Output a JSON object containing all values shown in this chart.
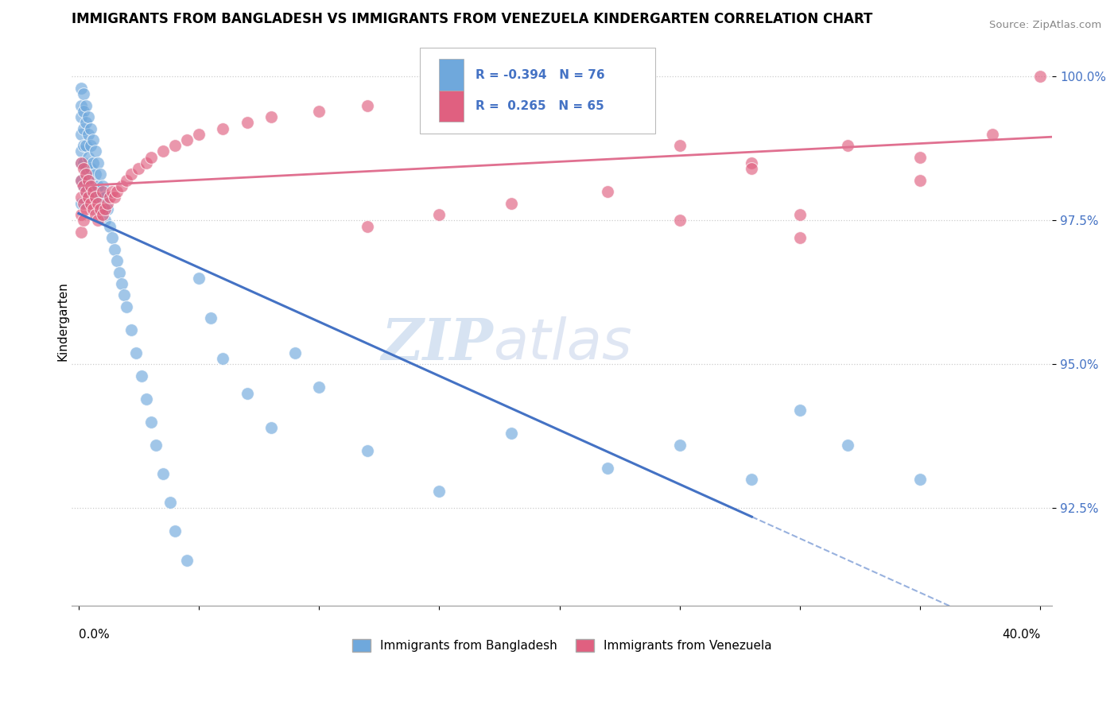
{
  "title": "IMMIGRANTS FROM BANGLADESH VS IMMIGRANTS FROM VENEZUELA KINDERGARTEN CORRELATION CHART",
  "source": "Source: ZipAtlas.com",
  "ylabel": "Kindergarten",
  "yticks": [
    0.925,
    0.95,
    0.975,
    1.0
  ],
  "ytick_labels": [
    "92.5%",
    "95.0%",
    "97.5%",
    "100.0%"
  ],
  "xlim": [
    -0.003,
    0.405
  ],
  "ylim": [
    0.908,
    1.007
  ],
  "legend_R1": "-0.394",
  "legend_N1": "76",
  "legend_R2": "0.265",
  "legend_N2": "65",
  "color_blue": "#6fa8dc",
  "color_pink": "#e06080",
  "line_blue": "#4472c4",
  "line_pink": "#e07090",
  "background": "#ffffff",
  "watermark_ZIP": "ZIP",
  "watermark_atlas": "atlas",
  "bd_x": [
    0.001,
    0.001,
    0.001,
    0.001,
    0.001,
    0.001,
    0.001,
    0.001,
    0.002,
    0.002,
    0.002,
    0.002,
    0.002,
    0.002,
    0.003,
    0.003,
    0.003,
    0.003,
    0.003,
    0.004,
    0.004,
    0.004,
    0.004,
    0.005,
    0.005,
    0.005,
    0.005,
    0.006,
    0.006,
    0.006,
    0.007,
    0.007,
    0.007,
    0.008,
    0.008,
    0.009,
    0.009,
    0.01,
    0.01,
    0.011,
    0.011,
    0.012,
    0.013,
    0.014,
    0.015,
    0.016,
    0.017,
    0.018,
    0.019,
    0.02,
    0.022,
    0.024,
    0.026,
    0.028,
    0.03,
    0.032,
    0.035,
    0.038,
    0.04,
    0.045,
    0.05,
    0.055,
    0.06,
    0.07,
    0.08,
    0.09,
    0.1,
    0.12,
    0.15,
    0.18,
    0.22,
    0.25,
    0.28,
    0.3,
    0.32,
    0.35
  ],
  "bd_y": [
    0.998,
    0.995,
    0.993,
    0.99,
    0.987,
    0.985,
    0.982,
    0.978,
    0.997,
    0.994,
    0.991,
    0.988,
    0.985,
    0.981,
    0.995,
    0.992,
    0.988,
    0.984,
    0.98,
    0.993,
    0.99,
    0.986,
    0.982,
    0.991,
    0.988,
    0.984,
    0.98,
    0.989,
    0.985,
    0.981,
    0.987,
    0.983,
    0.979,
    0.985,
    0.981,
    0.983,
    0.979,
    0.981,
    0.977,
    0.979,
    0.975,
    0.977,
    0.974,
    0.972,
    0.97,
    0.968,
    0.966,
    0.964,
    0.962,
    0.96,
    0.956,
    0.952,
    0.948,
    0.944,
    0.94,
    0.936,
    0.931,
    0.926,
    0.921,
    0.916,
    0.965,
    0.958,
    0.951,
    0.945,
    0.939,
    0.952,
    0.946,
    0.935,
    0.928,
    0.938,
    0.932,
    0.936,
    0.93,
    0.942,
    0.936,
    0.93
  ],
  "vz_x": [
    0.001,
    0.001,
    0.001,
    0.001,
    0.001,
    0.002,
    0.002,
    0.002,
    0.002,
    0.003,
    0.003,
    0.003,
    0.004,
    0.004,
    0.005,
    0.005,
    0.006,
    0.006,
    0.007,
    0.007,
    0.008,
    0.008,
    0.009,
    0.01,
    0.01,
    0.011,
    0.012,
    0.013,
    0.014,
    0.015,
    0.016,
    0.018,
    0.02,
    0.022,
    0.025,
    0.028,
    0.03,
    0.035,
    0.04,
    0.045,
    0.05,
    0.06,
    0.07,
    0.08,
    0.1,
    0.12,
    0.15,
    0.18,
    0.2,
    0.22,
    0.25,
    0.28,
    0.3,
    0.32,
    0.35,
    0.38,
    0.4,
    0.3,
    0.25,
    0.35,
    0.28,
    0.22,
    0.18,
    0.15,
    0.12
  ],
  "vz_y": [
    0.985,
    0.982,
    0.979,
    0.976,
    0.973,
    0.984,
    0.981,
    0.978,
    0.975,
    0.983,
    0.98,
    0.977,
    0.982,
    0.979,
    0.981,
    0.978,
    0.98,
    0.977,
    0.979,
    0.976,
    0.978,
    0.975,
    0.977,
    0.976,
    0.98,
    0.977,
    0.978,
    0.979,
    0.98,
    0.979,
    0.98,
    0.981,
    0.982,
    0.983,
    0.984,
    0.985,
    0.986,
    0.987,
    0.988,
    0.989,
    0.99,
    0.991,
    0.992,
    0.993,
    0.994,
    0.995,
    0.996,
    0.997,
    0.998,
    0.999,
    0.975,
    0.985,
    0.972,
    0.988,
    0.982,
    0.99,
    1.0,
    0.976,
    0.988,
    0.986,
    0.984,
    0.98,
    0.978,
    0.976,
    0.974
  ]
}
